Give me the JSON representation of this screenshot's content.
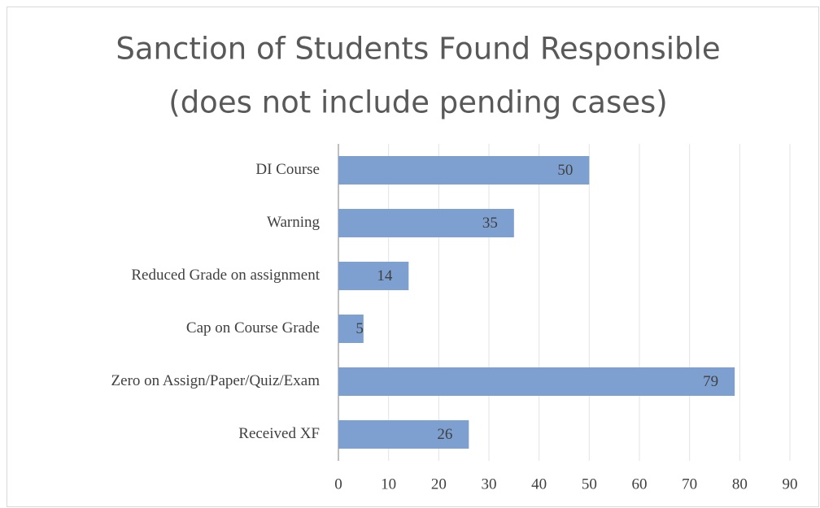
{
  "chart_data": {
    "type": "bar",
    "orientation": "horizontal",
    "title": [
      "Sanction of Students Found Responsible",
      "(does not include pending cases)"
    ],
    "categories": [
      "DI Course",
      "Warning",
      "Reduced Grade on assignment",
      "Cap on Course Grade",
      "Zero on Assign/Paper/Quiz/Exam",
      "Received XF"
    ],
    "values": [
      50,
      35,
      14,
      5,
      79,
      26
    ],
    "color": "#7ea0d1",
    "xlim": [
      0,
      90
    ],
    "xticks": [
      0,
      10,
      20,
      30,
      40,
      50,
      60,
      70,
      80,
      90
    ],
    "grid": true
  }
}
